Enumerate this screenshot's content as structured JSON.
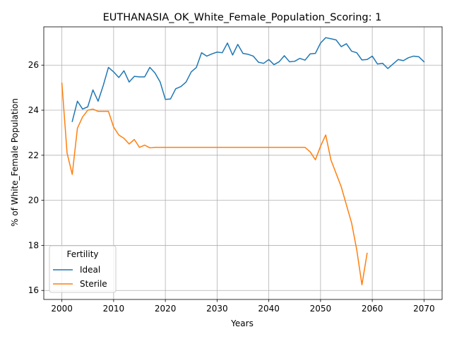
{
  "chart_data": {
    "type": "line",
    "title": "EUTHANASIA_OK_White_Female_Population_Scoring: 1",
    "xlabel": "Years",
    "ylabel": "% of White_Female Population",
    "xlim": [
      1996.5,
      2073.5
    ],
    "ylim": [
      15.6,
      27.7
    ],
    "xticks": [
      2000,
      2010,
      2020,
      2030,
      2040,
      2050,
      2060,
      2070
    ],
    "yticks": [
      16,
      18,
      20,
      22,
      24,
      26
    ],
    "grid": true,
    "legend": {
      "title": "Fertility",
      "placement": "lower-left"
    },
    "series": [
      {
        "name": "Ideal",
        "color": "#1f77b4",
        "x": [
          2002,
          2003,
          2004,
          2005,
          2006,
          2007,
          2008,
          2009,
          2010,
          2011,
          2012,
          2013,
          2014,
          2015,
          2016,
          2017,
          2018,
          2019,
          2020,
          2021,
          2022,
          2023,
          2024,
          2025,
          2026,
          2027,
          2028,
          2029,
          2030,
          2031,
          2032,
          2033,
          2034,
          2035,
          2036,
          2037,
          2038,
          2039,
          2040,
          2041,
          2042,
          2043,
          2044,
          2045,
          2046,
          2047,
          2048,
          2049,
          2050,
          2051,
          2052,
          2053,
          2054,
          2055,
          2056,
          2057,
          2058,
          2059,
          2060,
          2061,
          2062,
          2063,
          2064,
          2065,
          2066,
          2067,
          2068,
          2069,
          2070
        ],
        "values": [
          23.5,
          24.4,
          24.05,
          24.15,
          24.9,
          24.4,
          25.1,
          25.9,
          25.7,
          25.45,
          25.75,
          25.25,
          25.5,
          25.48,
          25.48,
          25.9,
          25.65,
          25.25,
          24.48,
          24.5,
          24.95,
          25.05,
          25.25,
          25.7,
          25.9,
          26.55,
          26.4,
          26.5,
          26.58,
          26.55,
          26.98,
          26.45,
          26.92,
          26.52,
          26.48,
          26.4,
          26.13,
          26.08,
          26.25,
          26.02,
          26.15,
          26.42,
          26.15,
          26.17,
          26.3,
          26.22,
          26.5,
          26.52,
          26.98,
          27.22,
          27.17,
          27.12,
          26.82,
          26.95,
          26.62,
          26.55,
          26.23,
          26.25,
          26.4,
          26.05,
          26.08,
          25.85,
          26.05,
          26.25,
          26.2,
          26.33,
          26.4,
          26.37,
          26.15
        ]
      },
      {
        "name": "Sterile",
        "color": "#ff7f0e",
        "x": [
          2000,
          2001,
          2002,
          2003,
          2004,
          2005,
          2006,
          2007,
          2008,
          2009,
          2010,
          2011,
          2012,
          2013,
          2014,
          2015,
          2016,
          2017,
          2018,
          2019,
          2020,
          2021,
          2022,
          2023,
          2024,
          2025,
          2026,
          2027,
          2028,
          2029,
          2030,
          2031,
          2032,
          2033,
          2034,
          2035,
          2036,
          2037,
          2038,
          2039,
          2040,
          2041,
          2042,
          2043,
          2044,
          2045,
          2046,
          2047,
          2048,
          2049,
          2050,
          2051,
          2052,
          2053,
          2054,
          2055,
          2056,
          2057,
          2058,
          2059
        ],
        "values": [
          25.2,
          22.1,
          21.15,
          23.2,
          23.7,
          24.0,
          24.05,
          23.95,
          23.95,
          23.95,
          23.25,
          22.9,
          22.75,
          22.5,
          22.7,
          22.35,
          22.45,
          22.33,
          22.35,
          22.35,
          22.35,
          22.35,
          22.35,
          22.35,
          22.35,
          22.35,
          22.35,
          22.35,
          22.35,
          22.35,
          22.35,
          22.35,
          22.35,
          22.35,
          22.35,
          22.35,
          22.35,
          22.35,
          22.35,
          22.35,
          22.35,
          22.35,
          22.35,
          22.35,
          22.35,
          22.35,
          22.35,
          22.35,
          22.15,
          21.8,
          22.4,
          22.9,
          21.8,
          21.2,
          20.6,
          19.8,
          19.0,
          17.8,
          16.25,
          17.65
        ]
      }
    ]
  }
}
